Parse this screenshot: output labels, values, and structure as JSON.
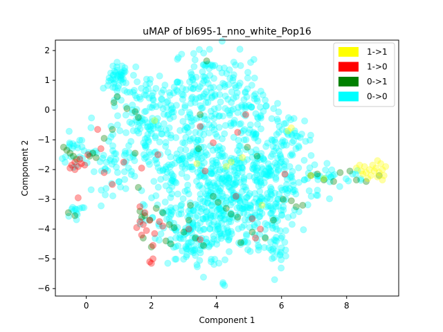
{
  "chart_data": {
    "type": "scatter",
    "title": "uMAP of bl695-1_nno_white_Pop16",
    "xlabel": "Component 1",
    "ylabel": "Component 2",
    "xlim": [
      -0.95,
      9.6
    ],
    "ylim": [
      -6.25,
      2.35
    ],
    "xticks": [
      0,
      2,
      4,
      6,
      8
    ],
    "yticks": [
      -6,
      -5,
      -4,
      -3,
      -2,
      -1,
      0,
      1,
      2
    ],
    "legend_position": "top-right",
    "marker_alpha": 0.35,
    "series": [
      {
        "name": "1->1",
        "color": "#ffff00",
        "points": [
          [
            8.3,
            -1.95
          ],
          [
            8.45,
            -2.05
          ],
          [
            8.55,
            -1.9
          ],
          [
            8.6,
            -2.1
          ],
          [
            8.7,
            -2.0
          ],
          [
            8.75,
            -2.2
          ],
          [
            8.8,
            -1.85
          ],
          [
            8.85,
            -2.05
          ],
          [
            8.9,
            -1.95
          ],
          [
            8.95,
            -2.25
          ],
          [
            9.0,
            -2.1
          ],
          [
            9.05,
            -1.8
          ],
          [
            9.1,
            -2.0
          ],
          [
            9.15,
            -2.2
          ],
          [
            9.2,
            -1.9
          ],
          [
            8.65,
            -2.3
          ],
          [
            8.5,
            -2.15
          ],
          [
            8.95,
            -1.7
          ],
          [
            9.1,
            -2.35
          ],
          [
            8.4,
            -1.85
          ],
          [
            6.2,
            -0.7
          ],
          [
            6.3,
            -0.6
          ],
          [
            4.3,
            -1.9
          ],
          [
            4.45,
            -1.75
          ],
          [
            2.1,
            -0.35
          ],
          [
            4.8,
            -1.6
          ],
          [
            6.9,
            -2.2
          ],
          [
            3.4,
            -1.8
          ],
          [
            5.4,
            -3.2
          ],
          [
            7.3,
            -2.3
          ]
        ]
      },
      {
        "name": "1->0",
        "color": "#ff0000",
        "points": [
          [
            -0.45,
            -1.85
          ],
          [
            -0.35,
            -1.75
          ],
          [
            -0.25,
            -1.9
          ],
          [
            -0.15,
            -1.8
          ],
          [
            -0.5,
            -1.95
          ],
          [
            -0.2,
            -1.65
          ],
          [
            -0.05,
            -1.85
          ],
          [
            -0.35,
            -2.0
          ],
          [
            0.05,
            -1.5
          ],
          [
            -0.25,
            -2.95
          ],
          [
            0.35,
            -0.65
          ],
          [
            0.8,
            -2.5
          ],
          [
            0.55,
            -2.1
          ],
          [
            1.15,
            -1.75
          ],
          [
            1.7,
            -1.95
          ],
          [
            1.65,
            -3.25
          ],
          [
            1.8,
            -3.45
          ],
          [
            1.65,
            -3.75
          ],
          [
            1.75,
            -3.85
          ],
          [
            1.85,
            -4.05
          ],
          [
            1.95,
            -3.7
          ],
          [
            1.7,
            -4.2
          ],
          [
            2.05,
            -4.55
          ],
          [
            2.1,
            -4.15
          ],
          [
            2.0,
            -5.15
          ],
          [
            1.95,
            -5.1
          ],
          [
            2.05,
            -5.0
          ],
          [
            2.25,
            -3.75
          ],
          [
            2.35,
            -3.9
          ],
          [
            2.2,
            -1.5
          ],
          [
            3.15,
            -4.0
          ],
          [
            3.5,
            -4.35
          ],
          [
            3.65,
            -2.05
          ],
          [
            3.9,
            -1.1
          ],
          [
            3.5,
            -0.55
          ],
          [
            4.6,
            -2.9
          ],
          [
            4.65,
            -0.75
          ],
          [
            4.9,
            -0.15
          ],
          [
            5.1,
            -3.65
          ],
          [
            5.2,
            -4.3
          ],
          [
            5.35,
            -4.0
          ],
          [
            6.1,
            -2.15
          ],
          [
            1.55,
            -3.95
          ],
          [
            0.45,
            -1.3
          ]
        ]
      },
      {
        "name": "0->1",
        "color": "#008000",
        "points": [
          [
            -0.7,
            -1.25
          ],
          [
            -0.6,
            -1.35
          ],
          [
            -0.5,
            -1.45
          ],
          [
            -0.4,
            -1.55
          ],
          [
            -0.3,
            -1.65
          ],
          [
            0.1,
            -1.55
          ],
          [
            0.2,
            -1.45
          ],
          [
            0.3,
            -1.6
          ],
          [
            -0.55,
            -3.45
          ],
          [
            -0.35,
            -3.55
          ],
          [
            0.55,
            -0.95
          ],
          [
            0.8,
            -0.65
          ],
          [
            0.95,
            0.45
          ],
          [
            0.85,
            0.25
          ],
          [
            1.25,
            0.05
          ],
          [
            1.5,
            -0.05
          ],
          [
            1.6,
            -0.25
          ],
          [
            1.5,
            -1.45
          ],
          [
            1.6,
            -2.6
          ],
          [
            1.7,
            -3.6
          ],
          [
            1.65,
            -3.4
          ],
          [
            1.8,
            -3.55
          ],
          [
            1.95,
            -3.7
          ],
          [
            1.75,
            -4.3
          ],
          [
            2.0,
            -4.6
          ],
          [
            2.15,
            -3.3
          ],
          [
            2.35,
            -3.45
          ],
          [
            2.55,
            -3.85
          ],
          [
            2.45,
            -4.4
          ],
          [
            2.6,
            -4.5
          ],
          [
            2.7,
            -3.95
          ],
          [
            3.0,
            -4.1
          ],
          [
            3.2,
            -3.2
          ],
          [
            3.35,
            -4.3
          ],
          [
            3.6,
            -4.55
          ],
          [
            3.45,
            -1.3
          ],
          [
            3.5,
            -0.15
          ],
          [
            3.7,
            1.65
          ],
          [
            3.9,
            -2.9
          ],
          [
            4.05,
            -3.1
          ],
          [
            4.3,
            -3.3
          ],
          [
            4.45,
            -3.5
          ],
          [
            4.65,
            -3.6
          ],
          [
            4.75,
            -4.45
          ],
          [
            4.95,
            -1.25
          ],
          [
            5.1,
            -4.1
          ],
          [
            5.25,
            -1.55
          ],
          [
            5.5,
            -4.3
          ],
          [
            5.75,
            -3.7
          ],
          [
            6.05,
            -3.0
          ],
          [
            6.3,
            -3.05
          ],
          [
            6.45,
            -3.25
          ],
          [
            6.65,
            -3.2
          ],
          [
            6.9,
            -2.2
          ],
          [
            7.1,
            -2.15
          ],
          [
            7.3,
            -2.35
          ],
          [
            7.6,
            -2.4
          ],
          [
            7.8,
            -2.1
          ],
          [
            8.1,
            -2.05
          ],
          [
            8.3,
            -2.35
          ],
          [
            8.6,
            -2.4
          ],
          [
            9.0,
            -2.2
          ],
          [
            3.15,
            -3.7
          ]
        ]
      },
      {
        "name": "0->0",
        "color": "#00ffff",
        "clusters": [
          {
            "cx": 1.0,
            "cy": 1.1,
            "sx": 0.15,
            "sy": 0.25,
            "n": 40
          },
          {
            "cx": 1.9,
            "cy": 0.2,
            "sx": 0.6,
            "sy": 0.5,
            "n": 90
          },
          {
            "cx": 1.9,
            "cy": -0.9,
            "sx": 0.5,
            "sy": 0.55,
            "n": 70
          },
          {
            "cx": 3.7,
            "cy": 1.0,
            "sx": 0.5,
            "sy": 0.6,
            "n": 90
          },
          {
            "cx": 4.8,
            "cy": 0.1,
            "sx": 0.6,
            "sy": 0.5,
            "n": 70
          },
          {
            "cx": 3.5,
            "cy": -1.1,
            "sx": 0.6,
            "sy": 0.7,
            "n": 90
          },
          {
            "cx": 5.2,
            "cy": -1.1,
            "sx": 0.5,
            "sy": 0.6,
            "n": 60
          },
          {
            "cx": 4.3,
            "cy": -2.6,
            "sx": 0.8,
            "sy": 0.6,
            "n": 150
          },
          {
            "cx": 4.1,
            "cy": -3.6,
            "sx": 0.8,
            "sy": 0.6,
            "n": 150
          },
          {
            "cx": 3.0,
            "cy": -3.9,
            "sx": 0.6,
            "sy": 0.5,
            "n": 80
          },
          {
            "cx": 3.4,
            "cy": -4.7,
            "sx": 0.4,
            "sy": 0.35,
            "n": 40
          },
          {
            "cx": 5.6,
            "cy": -3.5,
            "sx": 0.5,
            "sy": 0.5,
            "n": 60
          },
          {
            "cx": 5.9,
            "cy": -4.6,
            "sx": 0.25,
            "sy": 0.35,
            "n": 25
          },
          {
            "cx": 6.3,
            "cy": -1.0,
            "sx": 0.35,
            "sy": 0.45,
            "n": 40
          },
          {
            "cx": 6.3,
            "cy": -2.5,
            "sx": 0.45,
            "sy": 0.45,
            "n": 40
          },
          {
            "cx": 0.9,
            "cy": -1.9,
            "sx": 0.35,
            "sy": 0.45,
            "n": 40
          },
          {
            "cx": 2.8,
            "cy": -2.1,
            "sx": 0.55,
            "sy": 0.5,
            "n": 60
          },
          {
            "cx": -0.2,
            "cy": -1.5,
            "sx": 0.3,
            "sy": 0.35,
            "n": 30
          },
          {
            "cx": -0.3,
            "cy": -3.4,
            "sx": 0.2,
            "sy": 0.12,
            "n": 12
          },
          {
            "cx": 7.6,
            "cy": -2.2,
            "sx": 0.5,
            "sy": 0.15,
            "n": 25
          },
          {
            "cx": 5.5,
            "cy": -2.0,
            "sx": 0.5,
            "sy": 0.5,
            "n": 60
          }
        ],
        "points": [
          [
            3.4,
            -5.2
          ],
          [
            4.2,
            -5.85
          ],
          [
            4.25,
            -5.9
          ],
          [
            4.2,
            -5.8
          ],
          [
            6.7,
            -2.35
          ],
          [
            6.8,
            -2.3
          ],
          [
            5.05,
            1.6
          ],
          [
            5.15,
            1.7
          ],
          [
            3.3,
            1.9
          ],
          [
            4.4,
            1.35
          ],
          [
            3.95,
            1.5
          ]
        ]
      }
    ]
  }
}
